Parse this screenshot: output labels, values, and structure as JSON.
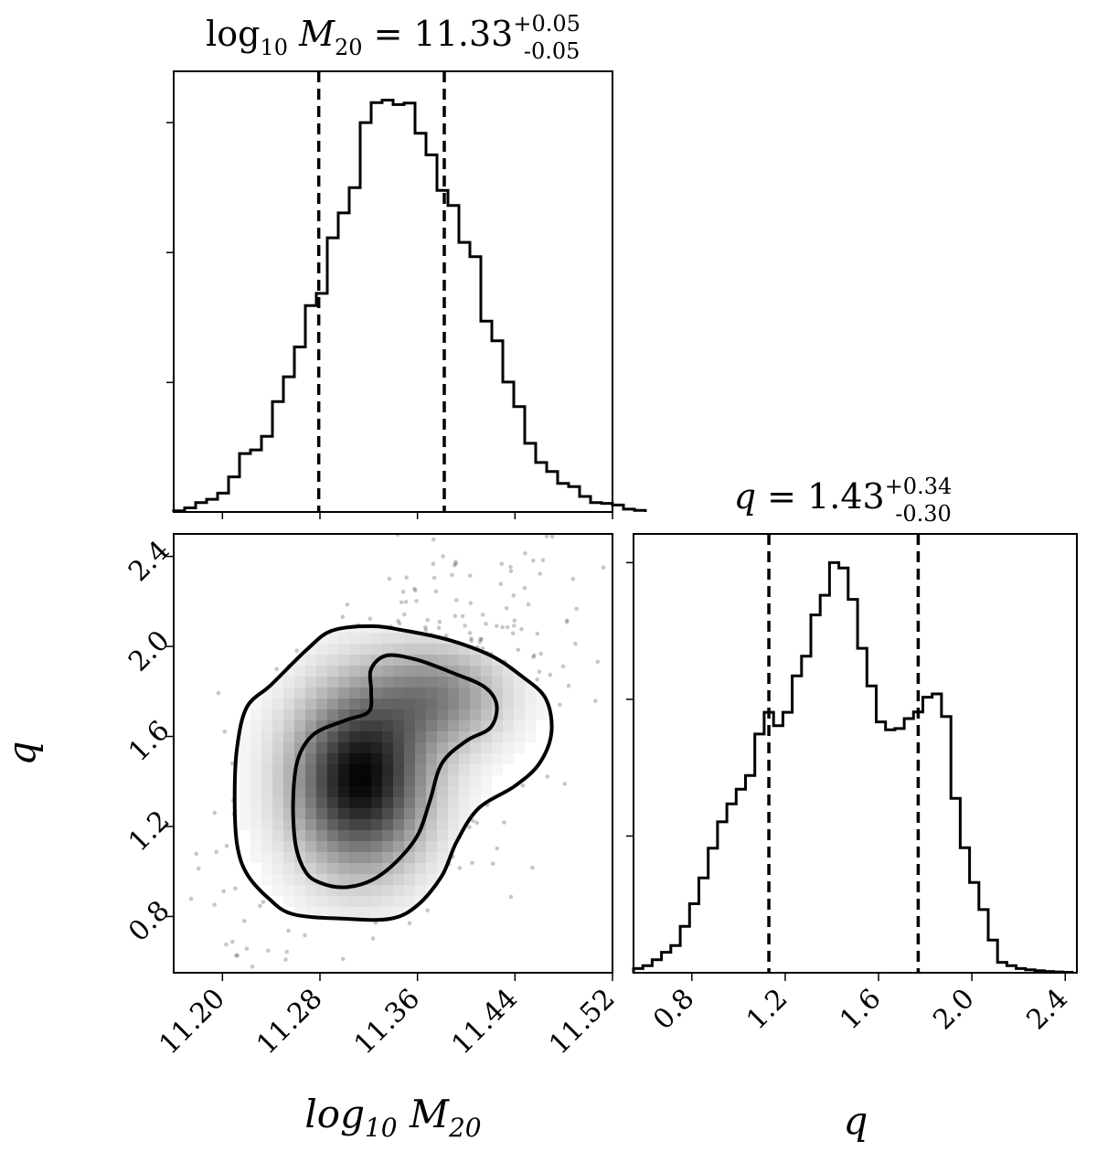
{
  "chart_data": [
    {
      "type": "histogram",
      "panel": "marginal-log10-M20",
      "title": "log10 M20 = 11.33 (+0.05 / -0.05)",
      "title_parts": {
        "prefix": "log",
        "base": "10",
        "var": "M",
        "sub": "20",
        "eq": " = 11.33",
        "sup": "+0.05",
        "low": "-0.05"
      },
      "xlim": [
        11.16,
        11.52
      ],
      "bins": {
        "start": 11.16,
        "width": 0.009,
        "heights": [
          0.003,
          0.01,
          0.023,
          0.031,
          0.046,
          0.086,
          0.143,
          0.152,
          0.185,
          0.27,
          0.331,
          0.404,
          0.505,
          0.535,
          0.671,
          0.732,
          0.794,
          0.953,
          1.002,
          1.008,
          0.997,
          1.001,
          0.927,
          0.874,
          0.787,
          0.75,
          0.66,
          0.625,
          0.467,
          0.419,
          0.318,
          0.258,
          0.168,
          0.121,
          0.099,
          0.07,
          0.062,
          0.038,
          0.023,
          0.021,
          0.017,
          0.007,
          0.004
        ]
      },
      "quantile_lines": [
        11.279,
        11.382
      ],
      "yticks": [
        0.317,
        0.635,
        0.953
      ]
    },
    {
      "type": "scatter",
      "panel": "2d-density",
      "xlabel": "log10 M20",
      "ylabel": "q",
      "xlim": [
        11.16,
        11.52
      ],
      "ylim": [
        0.55,
        2.5
      ],
      "xticks": [
        "11.20",
        "11.28",
        "11.36",
        "11.44",
        "11.52"
      ],
      "yticks": [
        "0.8",
        "1.2",
        "1.6",
        "2.0",
        "2.4"
      ],
      "density_peaks": [
        {
          "x": 11.313,
          "y": 1.41,
          "weight": 1.0
        },
        {
          "x": 11.378,
          "y": 1.78,
          "weight": 0.45
        }
      ],
      "contours": [
        {
          "level": "inner",
          "points": [
            [
              11.258,
              1.32
            ],
            [
              11.26,
              1.12
            ],
            [
              11.268,
              1.0
            ],
            [
              11.28,
              0.95
            ],
            [
              11.3,
              0.93
            ],
            [
              11.322,
              0.96
            ],
            [
              11.342,
              1.04
            ],
            [
              11.36,
              1.16
            ],
            [
              11.37,
              1.31
            ],
            [
              11.38,
              1.48
            ],
            [
              11.4,
              1.58
            ],
            [
              11.42,
              1.64
            ],
            [
              11.425,
              1.74
            ],
            [
              11.415,
              1.82
            ],
            [
              11.39,
              1.88
            ],
            [
              11.36,
              1.94
            ],
            [
              11.335,
              1.96
            ],
            [
              11.322,
              1.9
            ],
            [
              11.322,
              1.8
            ],
            [
              11.32,
              1.71
            ],
            [
              11.3,
              1.67
            ],
            [
              11.275,
              1.61
            ],
            [
              11.262,
              1.5
            ]
          ]
        },
        {
          "level": "outer",
          "points": [
            [
              11.21,
              1.33
            ],
            [
              11.212,
              1.12
            ],
            [
              11.22,
              0.99
            ],
            [
              11.238,
              0.88
            ],
            [
              11.258,
              0.81
            ],
            [
              11.3,
              0.79
            ],
            [
              11.338,
              0.79
            ],
            [
              11.36,
              0.85
            ],
            [
              11.38,
              0.98
            ],
            [
              11.392,
              1.13
            ],
            [
              11.41,
              1.28
            ],
            [
              11.44,
              1.38
            ],
            [
              11.46,
              1.48
            ],
            [
              11.47,
              1.62
            ],
            [
              11.465,
              1.77
            ],
            [
              11.445,
              1.87
            ],
            [
              11.42,
              1.96
            ],
            [
              11.385,
              2.03
            ],
            [
              11.35,
              2.07
            ],
            [
              11.322,
              2.09
            ],
            [
              11.29,
              2.07
            ],
            [
              11.27,
              1.99
            ],
            [
              11.24,
              1.83
            ],
            [
              11.22,
              1.73
            ],
            [
              11.212,
              1.55
            ]
          ]
        }
      ]
    },
    {
      "type": "histogram",
      "panel": "marginal-q",
      "title": "q = 1.43 (+0.34 / -0.30)",
      "title_parts": {
        "var": "q",
        "eq": " = 1.43",
        "sup": "+0.34",
        "low": "-0.30"
      },
      "xlabel": "q",
      "xlim": [
        0.55,
        2.45
      ],
      "xticks": [
        "0.8",
        "1.2",
        "1.6",
        "2.0",
        "2.4"
      ],
      "bins": {
        "start": 0.55,
        "width": 0.04,
        "heights": [
          0.01,
          0.017,
          0.031,
          0.049,
          0.065,
          0.111,
          0.165,
          0.227,
          0.298,
          0.361,
          0.404,
          0.439,
          0.472,
          0.571,
          0.623,
          0.591,
          0.623,
          0.71,
          0.757,
          0.856,
          0.903,
          0.981,
          0.968,
          0.893,
          0.776,
          0.686,
          0.6,
          0.581,
          0.584,
          0.608,
          0.624,
          0.659,
          0.667,
          0.613,
          0.417,
          0.299,
          0.216,
          0.151,
          0.078,
          0.025,
          0.017,
          0.01,
          0.007,
          0.005,
          0.003,
          0.002,
          0.001
        ]
      },
      "quantile_lines": [
        1.13,
        1.77
      ],
      "yticks": [
        0.327,
        0.654,
        0.981
      ]
    }
  ]
}
